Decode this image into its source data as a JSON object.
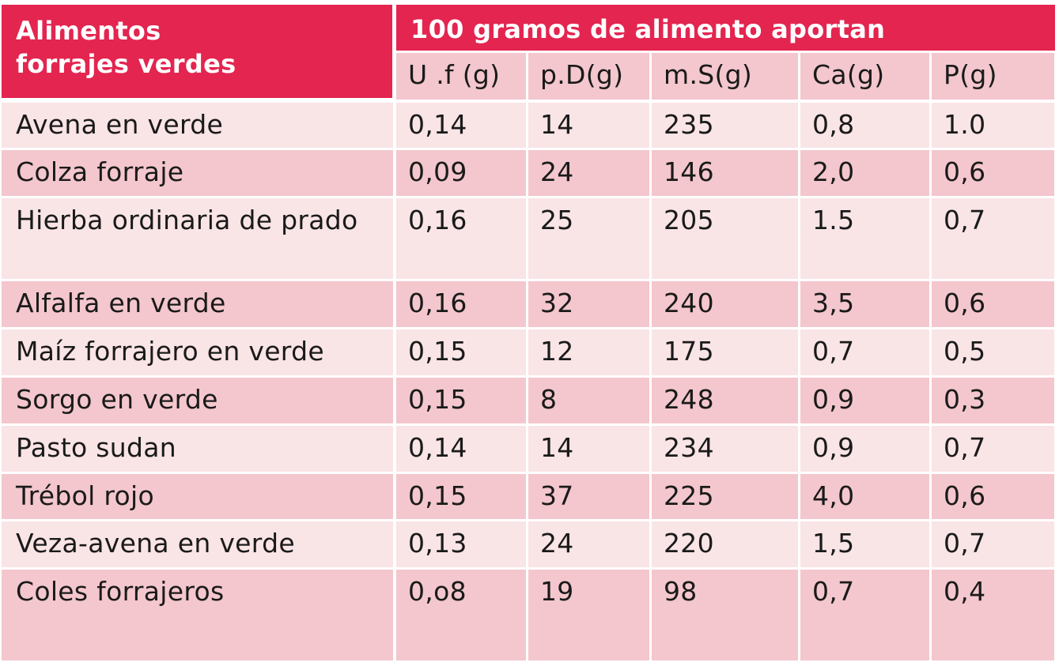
{
  "header": {
    "corner_label": "Alimentos\nforrajes verdes",
    "group_label": "100 gramos de alimento aportan",
    "columns": [
      "U .f (g)",
      "p.D(g)",
      "m.S(g)",
      "Ca(g)",
      "P(g)"
    ]
  },
  "rows": [
    {
      "name": "Avena en verde",
      "values": [
        "0,14",
        "14",
        "235",
        "0,8",
        "1.0"
      ]
    },
    {
      "name": "Colza forraje",
      "values": [
        "0,09",
        "24",
        "146",
        "2,0",
        "0,6"
      ]
    },
    {
      "name": "Hierba ordinaria de prado",
      "values": [
        "0,16",
        "25",
        "205",
        "1.5",
        "0,7"
      ]
    },
    {
      "name": "Alfalfa en verde",
      "values": [
        "0,16",
        "32",
        "240",
        "3,5",
        "0,6"
      ]
    },
    {
      "name": "Maíz forrajero en verde",
      "values": [
        "0,15",
        "12",
        "175",
        "0,7",
        "0,5"
      ]
    },
    {
      "name": "Sorgo en verde",
      "values": [
        "0,15",
        "8",
        "248",
        "0,9",
        "0,3"
      ]
    },
    {
      "name": "Pasto sudan",
      "values": [
        "0,14",
        "14",
        "234",
        "0,9",
        "0,7"
      ]
    },
    {
      "name": "Trébol rojo",
      "values": [
        "0,15",
        "37",
        "225",
        "4,0",
        "0,6"
      ]
    },
    {
      "name": "Veza-avena en verde",
      "values": [
        "0,13",
        "24",
        "220",
        "1,5",
        "0,7"
      ]
    },
    {
      "name": "Coles forrajeros",
      "values": [
        "0,o8",
        "19",
        "98",
        "0,7",
        "0,4"
      ]
    }
  ],
  "colors": {
    "header_bg": "#e32550",
    "row_light": "#f9e4e6",
    "row_dark": "#f3c7cd"
  }
}
